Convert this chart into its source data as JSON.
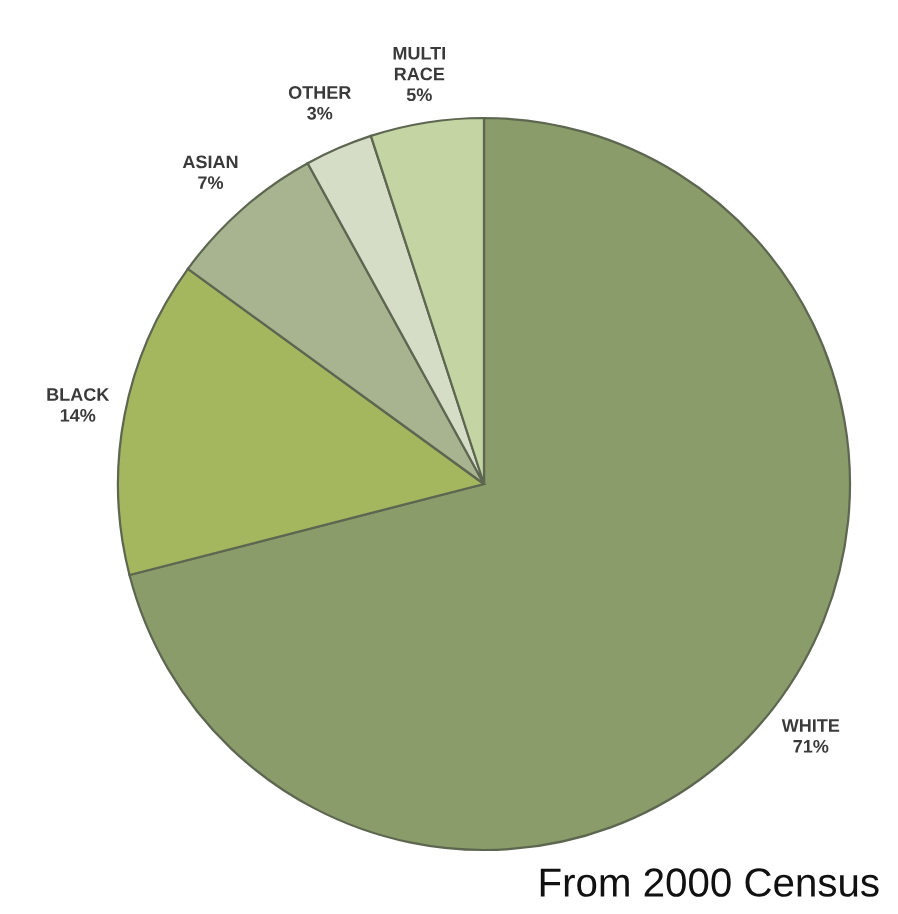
{
  "chart_data": {
    "type": "pie",
    "categories": [
      "WHITE",
      "BLACK",
      "ASIAN",
      "OTHER",
      "MULTI RACE"
    ],
    "values": [
      71,
      14,
      7,
      3,
      5
    ],
    "value_labels": [
      "71%",
      "14%",
      "7%",
      "3%",
      "5%"
    ],
    "colors": [
      "#8a9c69",
      "#a4b75f",
      "#a8b48f",
      "#d6ddc6",
      "#c4d4a2"
    ],
    "annotations": [
      "From 2000 Census"
    ]
  }
}
